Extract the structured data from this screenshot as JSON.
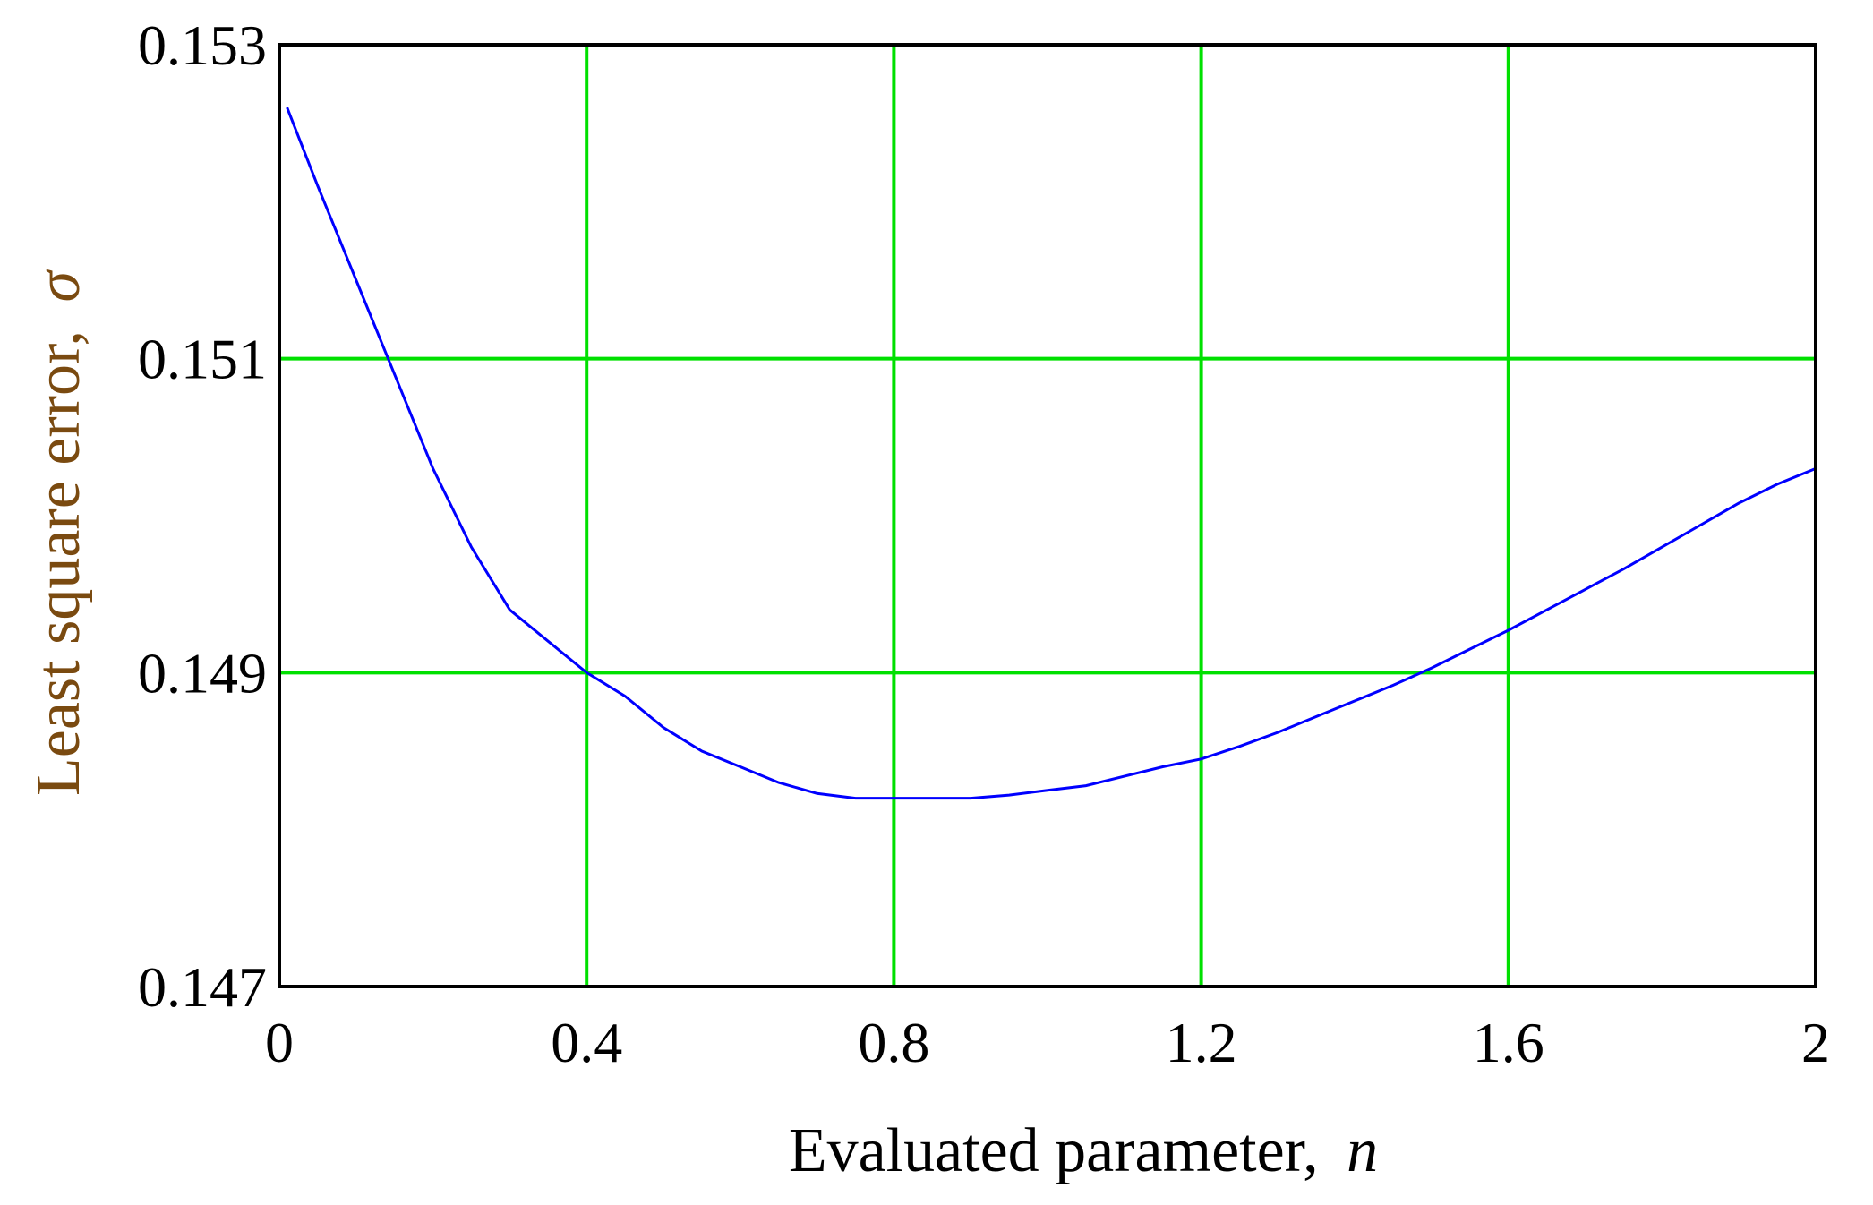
{
  "chart_data": {
    "type": "line",
    "title": "",
    "xlabel": "Evaluated parameter,",
    "xlabel_symbol": "n",
    "ylabel": "Least square error,",
    "ylabel_symbol": "σ",
    "xlim": [
      0,
      2
    ],
    "ylim": [
      0.147,
      0.153
    ],
    "xticks": [
      0,
      0.4,
      0.8,
      1.2,
      1.6,
      2
    ],
    "xtick_labels": [
      "0",
      "0.4",
      "0.8",
      "1.2",
      "1.6",
      "2"
    ],
    "yticks": [
      0.147,
      0.149,
      0.151,
      0.153
    ],
    "ytick_labels": [
      "0.147",
      "0.149",
      "0.151",
      "0.153"
    ],
    "grid": true,
    "legend": "none",
    "colors": {
      "line": "#0000ff",
      "grid": "#00e000",
      "frame": "#000000",
      "axis_title": "#7a4a10",
      "tick_label": "#000000"
    },
    "series": [
      {
        "x": [
          0.01,
          0.05,
          0.1,
          0.15,
          0.2,
          0.25,
          0.3,
          0.35,
          0.4,
          0.45,
          0.5,
          0.55,
          0.6,
          0.65,
          0.7,
          0.75,
          0.8,
          0.85,
          0.9,
          0.95,
          1.0,
          1.05,
          1.1,
          1.15,
          1.2,
          1.25,
          1.3,
          1.35,
          1.4,
          1.45,
          1.5,
          1.55,
          1.6,
          1.65,
          1.7,
          1.75,
          1.8,
          1.85,
          1.9,
          1.95,
          2.0
        ],
        "y": [
          0.1526,
          0.1521,
          0.1515,
          0.1509,
          0.1503,
          0.1498,
          0.1494,
          0.1492,
          0.149,
          0.14885,
          0.14865,
          0.1485,
          0.1484,
          0.1483,
          0.14823,
          0.1482,
          0.1482,
          0.1482,
          0.1482,
          0.14822,
          0.14825,
          0.14828,
          0.14834,
          0.1484,
          0.14845,
          0.14853,
          0.14862,
          0.14872,
          0.14882,
          0.14892,
          0.14903,
          0.14915,
          0.14927,
          0.1494,
          0.14953,
          0.14966,
          0.1498,
          0.14994,
          0.15008,
          0.1502,
          0.1503
        ]
      }
    ]
  }
}
